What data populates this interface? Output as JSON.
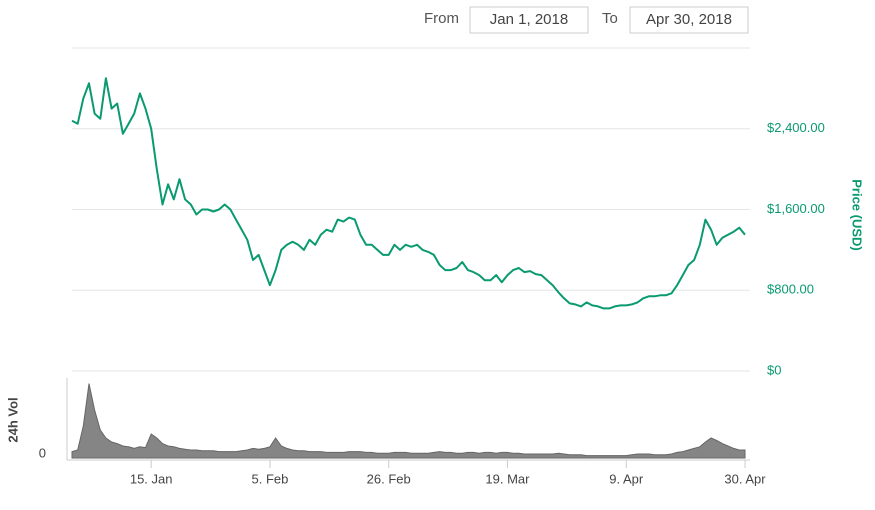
{
  "range": {
    "from_label": "From",
    "from": "Jan 1, 2018",
    "to_label": "To",
    "to": "Apr 30, 2018"
  },
  "chart_data": {
    "type": "line",
    "y_label": "Price (USD)",
    "y2_label": "24h Vol",
    "x": [
      "2018-01-01",
      "2018-01-02",
      "2018-01-03",
      "2018-01-04",
      "2018-01-05",
      "2018-01-06",
      "2018-01-07",
      "2018-01-08",
      "2018-01-09",
      "2018-01-10",
      "2018-01-11",
      "2018-01-12",
      "2018-01-13",
      "2018-01-14",
      "2018-01-15",
      "2018-01-16",
      "2018-01-17",
      "2018-01-18",
      "2018-01-19",
      "2018-01-20",
      "2018-01-21",
      "2018-01-22",
      "2018-01-23",
      "2018-01-24",
      "2018-01-25",
      "2018-01-26",
      "2018-01-27",
      "2018-01-28",
      "2018-01-29",
      "2018-01-30",
      "2018-01-31",
      "2018-02-01",
      "2018-02-02",
      "2018-02-03",
      "2018-02-04",
      "2018-02-05",
      "2018-02-06",
      "2018-02-07",
      "2018-02-08",
      "2018-02-09",
      "2018-02-10",
      "2018-02-11",
      "2018-02-12",
      "2018-02-13",
      "2018-02-14",
      "2018-02-15",
      "2018-02-16",
      "2018-02-17",
      "2018-02-18",
      "2018-02-19",
      "2018-02-20",
      "2018-02-21",
      "2018-02-22",
      "2018-02-23",
      "2018-02-24",
      "2018-02-25",
      "2018-02-26",
      "2018-02-27",
      "2018-02-28",
      "2018-03-01",
      "2018-03-02",
      "2018-03-03",
      "2018-03-04",
      "2018-03-05",
      "2018-03-06",
      "2018-03-07",
      "2018-03-08",
      "2018-03-09",
      "2018-03-10",
      "2018-03-11",
      "2018-03-12",
      "2018-03-13",
      "2018-03-14",
      "2018-03-15",
      "2018-03-16",
      "2018-03-17",
      "2018-03-18",
      "2018-03-19",
      "2018-03-20",
      "2018-03-21",
      "2018-03-22",
      "2018-03-23",
      "2018-03-24",
      "2018-03-25",
      "2018-03-26",
      "2018-03-27",
      "2018-03-28",
      "2018-03-29",
      "2018-03-30",
      "2018-03-31",
      "2018-04-01",
      "2018-04-02",
      "2018-04-03",
      "2018-04-04",
      "2018-04-05",
      "2018-04-06",
      "2018-04-07",
      "2018-04-08",
      "2018-04-09",
      "2018-04-10",
      "2018-04-11",
      "2018-04-12",
      "2018-04-13",
      "2018-04-14",
      "2018-04-15",
      "2018-04-16",
      "2018-04-17",
      "2018-04-18",
      "2018-04-19",
      "2018-04-20",
      "2018-04-21",
      "2018-04-22",
      "2018-04-23",
      "2018-04-24",
      "2018-04-25",
      "2018-04-26",
      "2018-04-27",
      "2018-04-28",
      "2018-04-29",
      "2018-04-30"
    ],
    "xlim": [
      "2018-01-01",
      "2018-04-30"
    ],
    "xticks": [
      {
        "value": "2018-01-15",
        "label": "15. Jan"
      },
      {
        "value": "2018-02-05",
        "label": "5. Feb"
      },
      {
        "value": "2018-02-26",
        "label": "26. Feb"
      },
      {
        "value": "2018-03-19",
        "label": "19. Mar"
      },
      {
        "value": "2018-04-09",
        "label": "9. Apr"
      },
      {
        "value": "2018-04-30",
        "label": "30. Apr"
      }
    ],
    "ylim": [
      0,
      3200
    ],
    "yticks": [
      {
        "value": 0,
        "label": "$0"
      },
      {
        "value": 800,
        "label": "$800.00"
      },
      {
        "value": 1600,
        "label": "$1,600.00"
      },
      {
        "value": 2400,
        "label": "$2,400.00"
      }
    ],
    "y2lim": [
      0,
      100
    ],
    "y2ticks": [
      0
    ],
    "grid": true,
    "series": [
      {
        "name": "Price",
        "color": "#0a9a70",
        "values": [
          2480,
          2450,
          2700,
          2850,
          2550,
          2500,
          2900,
          2600,
          2650,
          2350,
          2450,
          2550,
          2750,
          2600,
          2400,
          2000,
          1650,
          1850,
          1700,
          1900,
          1700,
          1650,
          1550,
          1600,
          1600,
          1580,
          1600,
          1650,
          1600,
          1500,
          1400,
          1300,
          1100,
          1150,
          1000,
          850,
          1000,
          1200,
          1250,
          1280,
          1250,
          1200,
          1300,
          1250,
          1350,
          1400,
          1380,
          1500,
          1480,
          1520,
          1500,
          1350,
          1250,
          1250,
          1200,
          1150,
          1150,
          1250,
          1200,
          1250,
          1230,
          1250,
          1200,
          1180,
          1150,
          1050,
          1000,
          1000,
          1020,
          1080,
          1000,
          980,
          950,
          900,
          900,
          950,
          880,
          950,
          1000,
          1020,
          980,
          990,
          960,
          950,
          900,
          850,
          780,
          720,
          670,
          660,
          640,
          680,
          650,
          640,
          620,
          620,
          640,
          650,
          650,
          660,
          680,
          720,
          740,
          740,
          750,
          750,
          770,
          850,
          950,
          1050,
          1100,
          1250,
          1500,
          1400,
          1250,
          1320,
          1350,
          1380,
          1420,
          1350
        ]
      },
      {
        "name": "24h Vol",
        "color": "#666666",
        "axis": "y2",
        "values": [
          8,
          10,
          40,
          93,
          60,
          35,
          25,
          20,
          18,
          15,
          14,
          12,
          14,
          13,
          30,
          25,
          18,
          15,
          14,
          12,
          11,
          10,
          10,
          9,
          9,
          9,
          8,
          8,
          8,
          8,
          9,
          10,
          12,
          11,
          12,
          14,
          25,
          15,
          12,
          10,
          9,
          9,
          8,
          8,
          8,
          7,
          7,
          7,
          7,
          8,
          8,
          8,
          7,
          7,
          6,
          6,
          6,
          7,
          7,
          7,
          6,
          6,
          6,
          6,
          7,
          8,
          7,
          7,
          6,
          6,
          7,
          7,
          6,
          7,
          7,
          6,
          7,
          7,
          6,
          6,
          5,
          5,
          5,
          5,
          5,
          5,
          6,
          5,
          4,
          4,
          4,
          3,
          3,
          3,
          3,
          3,
          3,
          3,
          3,
          4,
          5,
          5,
          5,
          4,
          4,
          4,
          5,
          7,
          8,
          10,
          12,
          14,
          20,
          25,
          22,
          18,
          15,
          12,
          10,
          10
        ]
      }
    ]
  }
}
